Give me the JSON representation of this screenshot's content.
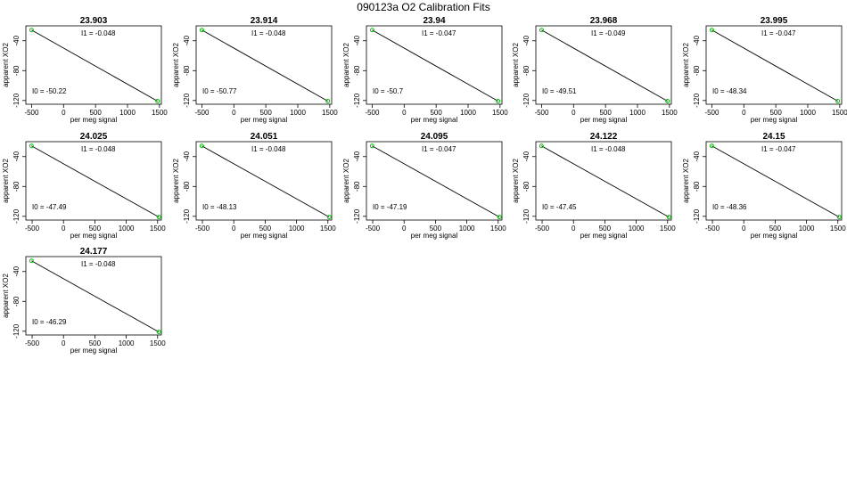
{
  "title": "090123a   O2 Calibration Fits",
  "colors": {
    "line": "#000000",
    "points": "#00c000",
    "frame": "#000000",
    "background": "#ffffff"
  },
  "chart_data": [
    {
      "type": "scatter",
      "title": "23.903",
      "xlabel": "per meg signal",
      "ylabel": "apparent XO2",
      "xticks": [
        -500,
        0,
        500,
        1000,
        1500
      ],
      "yticks": [
        -40,
        -80,
        -120
      ],
      "xlim": [
        -590,
        1530
      ],
      "ylim": [
        -125,
        -20
      ],
      "points": [
        {
          "x": -500,
          "y": -25.7
        },
        {
          "x": 1470,
          "y": -120.8
        }
      ],
      "fit": {
        "I0_label": "I0 =  -50.22",
        "I1_label": "I1 =  -0.048",
        "I0": -50.22,
        "I1": -0.048
      }
    },
    {
      "type": "scatter",
      "title": "23.914",
      "xlabel": "per meg signal",
      "ylabel": "apparent XO2",
      "xticks": [
        -500,
        0,
        500,
        1000,
        1500
      ],
      "yticks": [
        -40,
        -80,
        -120
      ],
      "xlim": [
        -590,
        1530
      ],
      "ylim": [
        -125,
        -20
      ],
      "points": [
        {
          "x": -500,
          "y": -25.7
        },
        {
          "x": 1470,
          "y": -120.8
        }
      ],
      "fit": {
        "I0_label": "I0 =  -50.77",
        "I1_label": "I1 =  -0.048",
        "I0": -50.77,
        "I1": -0.048
      }
    },
    {
      "type": "scatter",
      "title": "23.94",
      "xlabel": "per meg signal",
      "ylabel": "apparent XO2",
      "xticks": [
        -500,
        0,
        500,
        1000,
        1500
      ],
      "yticks": [
        -40,
        -80,
        -120
      ],
      "xlim": [
        -590,
        1530
      ],
      "ylim": [
        -125,
        -20
      ],
      "points": [
        {
          "x": -500,
          "y": -25.7
        },
        {
          "x": 1470,
          "y": -120.8
        }
      ],
      "fit": {
        "I0_label": "I0 =  -50.7",
        "I1_label": "I1 =  -0.047",
        "I0": -50.7,
        "I1": -0.047
      }
    },
    {
      "type": "scatter",
      "title": "23.968",
      "xlabel": "per meg signal",
      "ylabel": "apparent XO2",
      "xticks": [
        -500,
        0,
        500,
        1000,
        1500
      ],
      "yticks": [
        -40,
        -80,
        -120
      ],
      "xlim": [
        -590,
        1530
      ],
      "ylim": [
        -125,
        -20
      ],
      "points": [
        {
          "x": -500,
          "y": -25.7
        },
        {
          "x": 1470,
          "y": -120.8
        }
      ],
      "fit": {
        "I0_label": "I0 =  -49.51",
        "I1_label": "I1 =  -0.049",
        "I0": -49.51,
        "I1": -0.049
      }
    },
    {
      "type": "scatter",
      "title": "23.995",
      "xlabel": "per meg signal",
      "ylabel": "apparent XO2",
      "xticks": [
        -500,
        0,
        500,
        1000,
        1500
      ],
      "yticks": [
        -40,
        -80,
        -120
      ],
      "xlim": [
        -590,
        1530
      ],
      "ylim": [
        -125,
        -20
      ],
      "points": [
        {
          "x": -500,
          "y": -25.7
        },
        {
          "x": 1470,
          "y": -120.8
        }
      ],
      "fit": {
        "I0_label": "I0 =  -48.34",
        "I1_label": "I1 =  -0.047",
        "I0": -48.34,
        "I1": -0.047
      }
    },
    {
      "type": "scatter",
      "title": "24.025",
      "xlabel": "per meg signal",
      "ylabel": "apparent XO2",
      "xticks": [
        -500,
        0,
        500,
        1000,
        1500
      ],
      "yticks": [
        -40,
        -80,
        -120
      ],
      "xlim": [
        -600,
        1560
      ],
      "ylim": [
        -125,
        -20
      ],
      "points": [
        {
          "x": -510,
          "y": -25.7
        },
        {
          "x": 1520,
          "y": -121.0
        }
      ],
      "fit": {
        "I0_label": "I0 =  -47.49",
        "I1_label": "I1 =  -0.048",
        "I0": -47.49,
        "I1": -0.048
      }
    },
    {
      "type": "scatter",
      "title": "24.051",
      "xlabel": "per meg signal",
      "ylabel": "apparent XO2",
      "xticks": [
        -500,
        0,
        500,
        1000,
        1500
      ],
      "yticks": [
        -40,
        -80,
        -120
      ],
      "xlim": [
        -600,
        1560
      ],
      "ylim": [
        -125,
        -20
      ],
      "points": [
        {
          "x": -510,
          "y": -25.7
        },
        {
          "x": 1520,
          "y": -121.0
        }
      ],
      "fit": {
        "I0_label": "I0 =  -48.13",
        "I1_label": "I1 =  -0.048",
        "I0": -48.13,
        "I1": -0.048
      }
    },
    {
      "type": "scatter",
      "title": "24.095",
      "xlabel": "per meg signal",
      "ylabel": "apparent XO2",
      "xticks": [
        -500,
        0,
        500,
        1000,
        1500
      ],
      "yticks": [
        -40,
        -80,
        -120
      ],
      "xlim": [
        -600,
        1560
      ],
      "ylim": [
        -125,
        -20
      ],
      "points": [
        {
          "x": -510,
          "y": -25.7
        },
        {
          "x": 1520,
          "y": -121.0
        }
      ],
      "fit": {
        "I0_label": "I0 =  -47.19",
        "I1_label": "I1 =  -0.047",
        "I0": -47.19,
        "I1": -0.047
      }
    },
    {
      "type": "scatter",
      "title": "24.122",
      "xlabel": "per meg signal",
      "ylabel": "apparent XO2",
      "xticks": [
        -500,
        0,
        500,
        1000,
        1500
      ],
      "yticks": [
        -40,
        -80,
        -120
      ],
      "xlim": [
        -600,
        1560
      ],
      "ylim": [
        -125,
        -20
      ],
      "points": [
        {
          "x": -510,
          "y": -25.7
        },
        {
          "x": 1520,
          "y": -121.0
        }
      ],
      "fit": {
        "I0_label": "I0 =  -47.45",
        "I1_label": "I1 =  -0.048",
        "I0": -47.45,
        "I1": -0.048
      }
    },
    {
      "type": "scatter",
      "title": "24.15",
      "xlabel": "per meg signal",
      "ylabel": "apparent XO2",
      "xticks": [
        -500,
        0,
        500,
        1000,
        1500
      ],
      "yticks": [
        -40,
        -80,
        -120
      ],
      "xlim": [
        -600,
        1560
      ],
      "ylim": [
        -125,
        -20
      ],
      "points": [
        {
          "x": -510,
          "y": -25.7
        },
        {
          "x": 1520,
          "y": -121.0
        }
      ],
      "fit": {
        "I0_label": "I0 =  -48.36",
        "I1_label": "I1 =  -0.047",
        "I0": -48.36,
        "I1": -0.047
      }
    },
    {
      "type": "scatter",
      "title": "24.177",
      "xlabel": "per meg signal",
      "ylabel": "apparent XO2",
      "xticks": [
        -500,
        0,
        500,
        1000,
        1500
      ],
      "yticks": [
        -40,
        -80,
        -120
      ],
      "xlim": [
        -600,
        1560
      ],
      "ylim": [
        -125,
        -20
      ],
      "points": [
        {
          "x": -510,
          "y": -25.7
        },
        {
          "x": 1520,
          "y": -121.0
        }
      ],
      "fit": {
        "I0_label": "I0 =  -46.29",
        "I1_label": "I1 =  -0.048",
        "I0": -46.29,
        "I1": -0.048
      }
    }
  ]
}
